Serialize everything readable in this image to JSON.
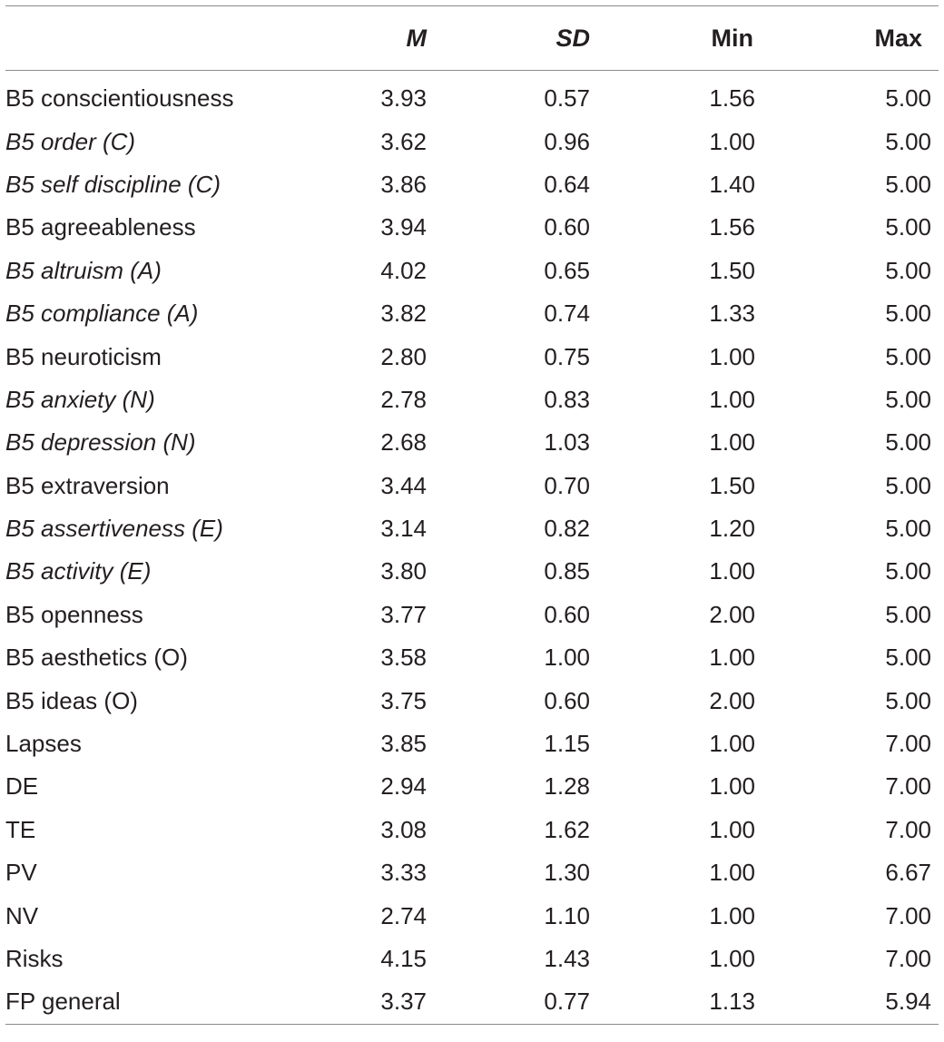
{
  "table": {
    "headers": {
      "label": "",
      "m": "M",
      "sd": "SD",
      "min": "Min",
      "max": "Max"
    },
    "rows": [
      {
        "label": "B5 conscientiousness",
        "italic": false,
        "m": "3.93",
        "sd": "0.57",
        "min": "1.56",
        "max": "5.00"
      },
      {
        "label": "B5 order (C)",
        "italic": true,
        "m": "3.62",
        "sd": "0.96",
        "min": "1.00",
        "max": "5.00"
      },
      {
        "label": "B5 self discipline (C)",
        "italic": true,
        "m": "3.86",
        "sd": "0.64",
        "min": "1.40",
        "max": "5.00"
      },
      {
        "label": "B5 agreeableness",
        "italic": false,
        "m": "3.94",
        "sd": "0.60",
        "min": "1.56",
        "max": "5.00"
      },
      {
        "label": "B5 altruism (A)",
        "italic": true,
        "m": "4.02",
        "sd": "0.65",
        "min": "1.50",
        "max": "5.00"
      },
      {
        "label": "B5 compliance (A)",
        "italic": true,
        "m": "3.82",
        "sd": "0.74",
        "min": "1.33",
        "max": "5.00"
      },
      {
        "label": "B5 neuroticism",
        "italic": false,
        "m": "2.80",
        "sd": "0.75",
        "min": "1.00",
        "max": "5.00"
      },
      {
        "label": "B5 anxiety (N)",
        "italic": true,
        "m": "2.78",
        "sd": "0.83",
        "min": "1.00",
        "max": "5.00"
      },
      {
        "label": "B5 depression (N)",
        "italic": true,
        "m": "2.68",
        "sd": "1.03",
        "min": "1.00",
        "max": "5.00"
      },
      {
        "label": "B5 extraversion",
        "italic": false,
        "m": "3.44",
        "sd": "0.70",
        "min": "1.50",
        "max": "5.00"
      },
      {
        "label": "B5 assertiveness (E)",
        "italic": true,
        "m": "3.14",
        "sd": "0.82",
        "min": "1.20",
        "max": "5.00"
      },
      {
        "label": "B5 activity (E)",
        "italic": true,
        "m": "3.80",
        "sd": "0.85",
        "min": "1.00",
        "max": "5.00"
      },
      {
        "label": "B5 openness",
        "italic": false,
        "m": "3.77",
        "sd": "0.60",
        "min": "2.00",
        "max": "5.00"
      },
      {
        "label": "B5 aesthetics (O)",
        "italic": false,
        "m": "3.58",
        "sd": "1.00",
        "min": "1.00",
        "max": "5.00"
      },
      {
        "label": "B5 ideas (O)",
        "italic": false,
        "m": "3.75",
        "sd": "0.60",
        "min": "2.00",
        "max": "5.00"
      },
      {
        "label": "Lapses",
        "italic": false,
        "m": "3.85",
        "sd": "1.15",
        "min": "1.00",
        "max": "7.00"
      },
      {
        "label": "DE",
        "italic": false,
        "m": "2.94",
        "sd": "1.28",
        "min": "1.00",
        "max": "7.00"
      },
      {
        "label": "TE",
        "italic": false,
        "m": "3.08",
        "sd": "1.62",
        "min": "1.00",
        "max": "7.00"
      },
      {
        "label": "PV",
        "italic": false,
        "m": "3.33",
        "sd": "1.30",
        "min": "1.00",
        "max": "6.67"
      },
      {
        "label": "NV",
        "italic": false,
        "m": "2.74",
        "sd": "1.10",
        "min": "1.00",
        "max": "7.00"
      },
      {
        "label": "Risks",
        "italic": false,
        "m": "4.15",
        "sd": "1.43",
        "min": "1.00",
        "max": "7.00"
      },
      {
        "label": "FP general",
        "italic": false,
        "m": "3.37",
        "sd": "0.77",
        "min": "1.13",
        "max": "5.94"
      }
    ]
  }
}
